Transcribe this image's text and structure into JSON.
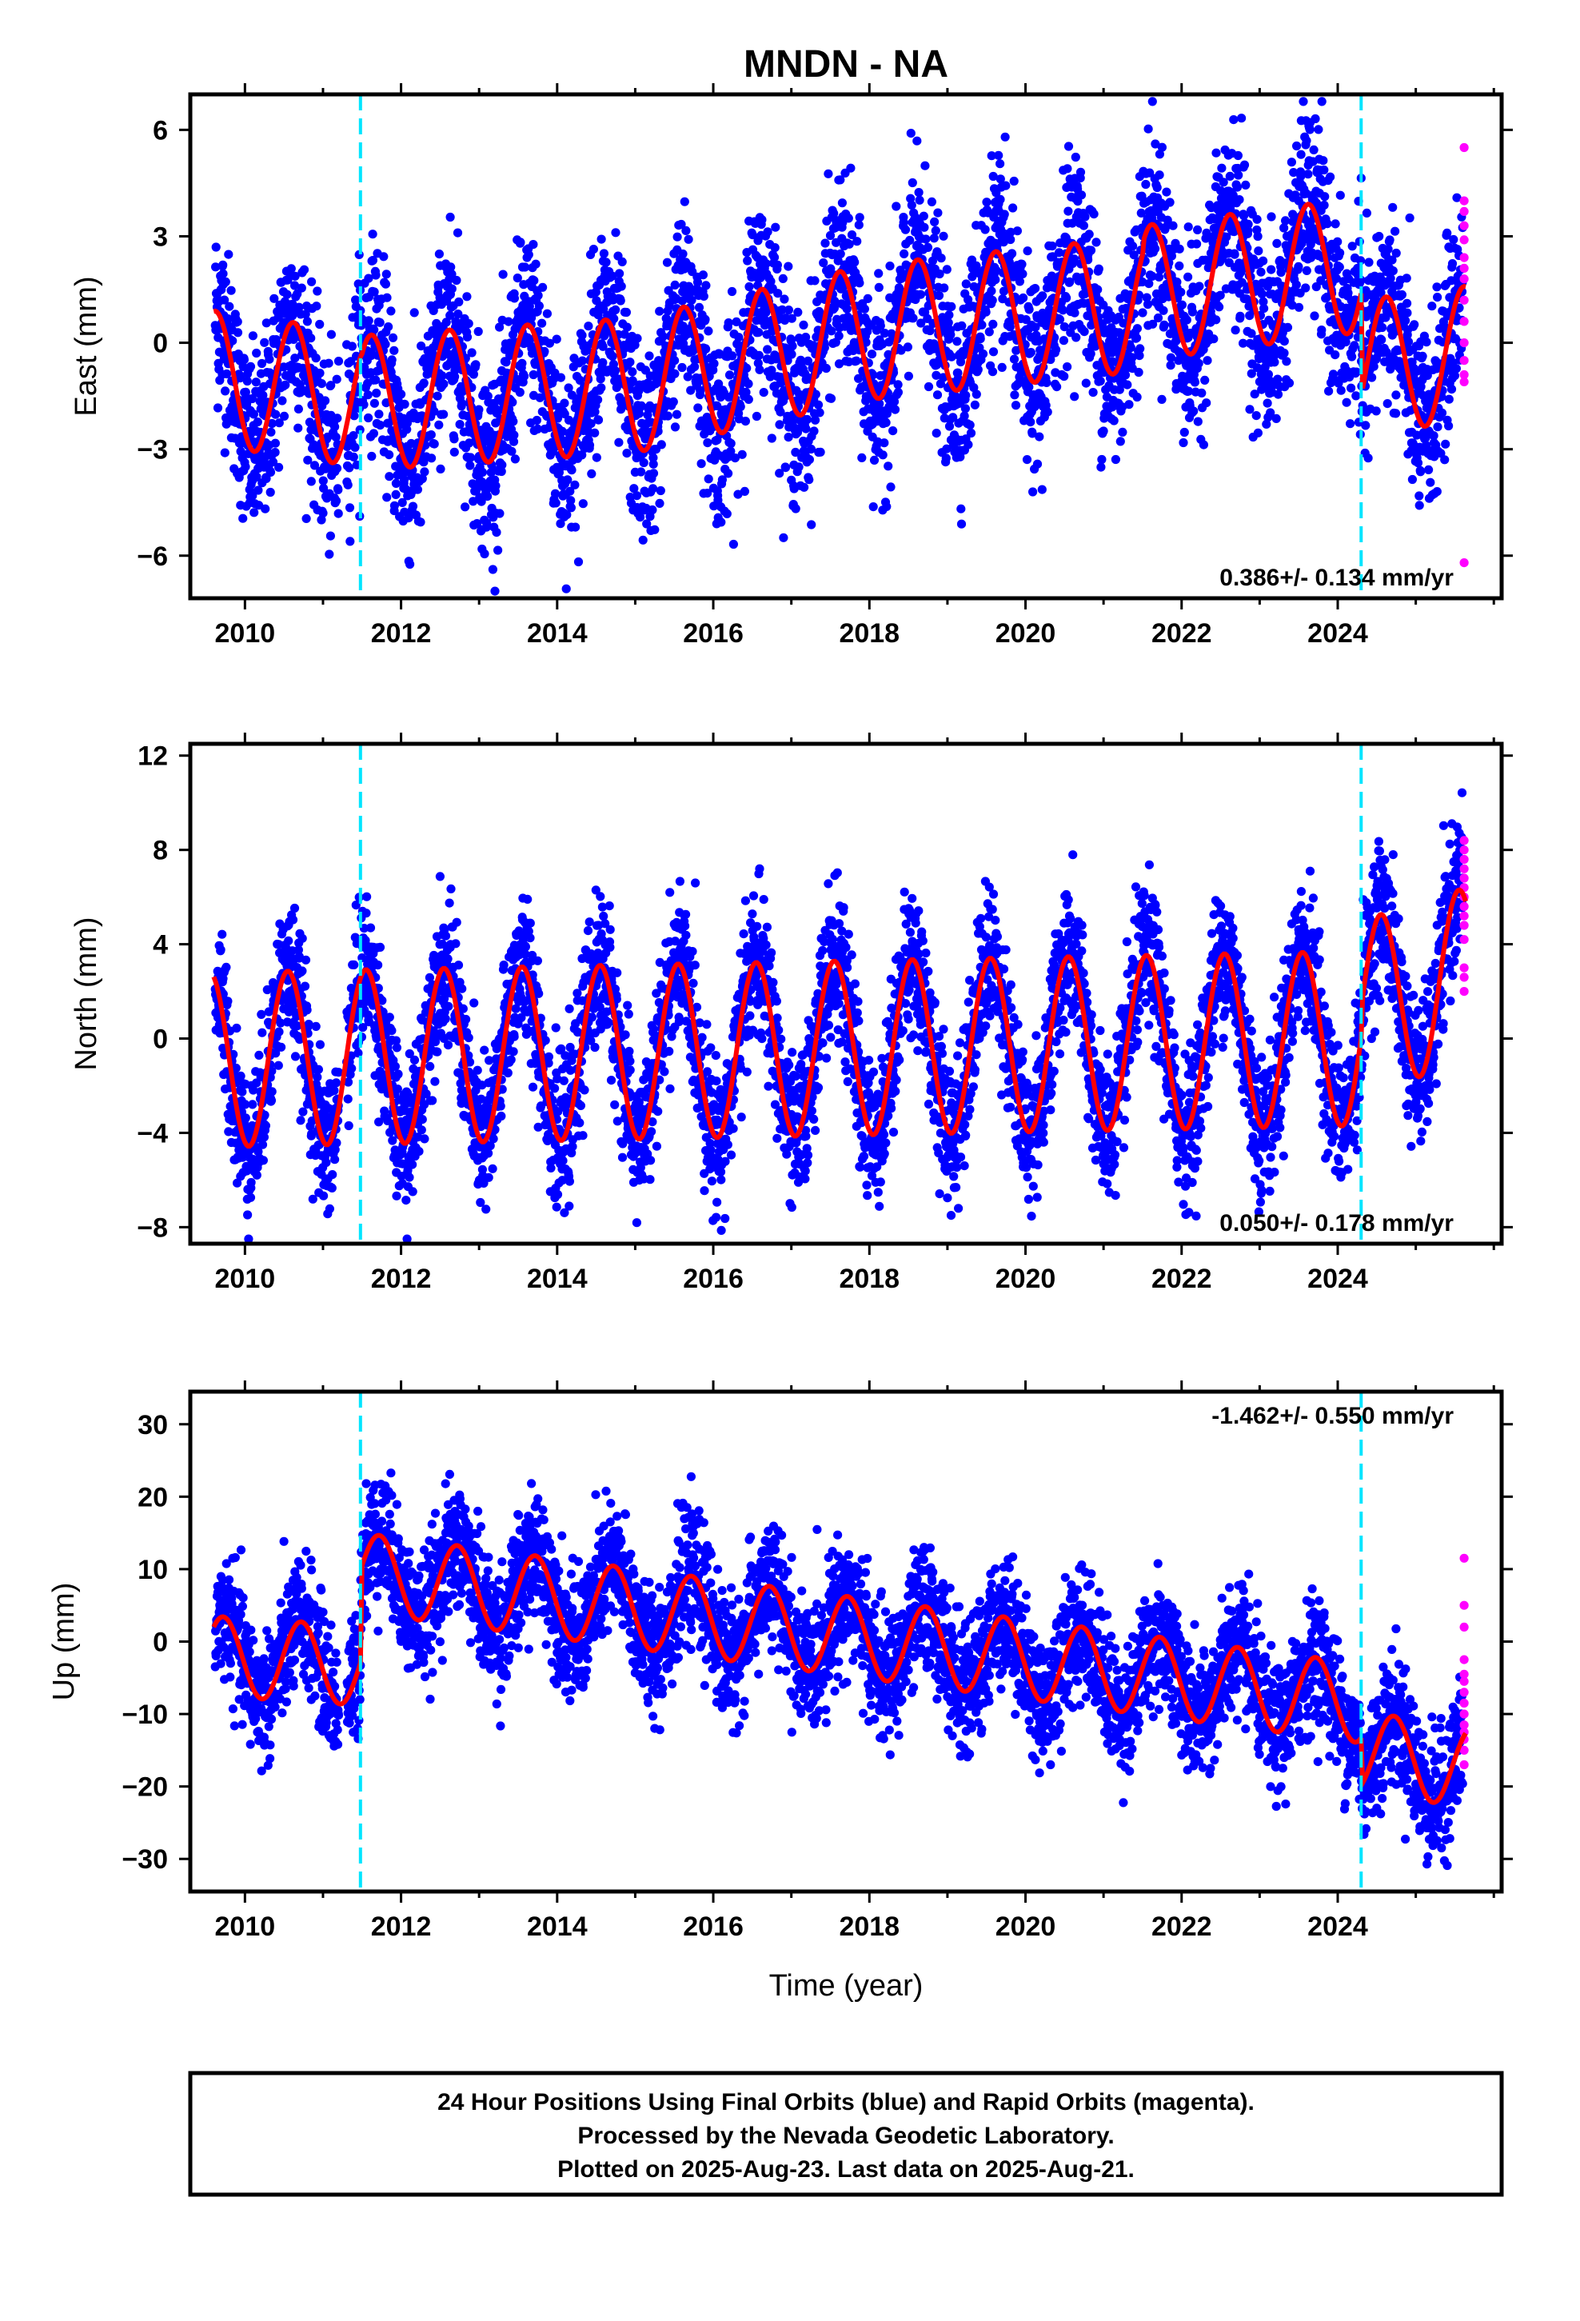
{
  "chart_title": "MNDN - NA",
  "colors": {
    "final_orbits": "#0000ff",
    "rapid_orbits": "#ff00ff",
    "model_fit": "#ff0000",
    "event_lines": "#00e5ff",
    "frame": "#000000"
  },
  "event_lines_year": [
    2011.48,
    2024.3
  ],
  "x_axis": {
    "range": [
      2009.3,
      2026.1
    ],
    "ticks": [
      2010,
      2012,
      2014,
      2016,
      2018,
      2020,
      2022,
      2024
    ],
    "xlabel": "Time (year)"
  },
  "chart_data": [
    {
      "type": "scatter",
      "component": "east",
      "ylabel": "East (mm)",
      "ylim": [
        -7.2,
        7.0
      ],
      "yticks": [
        -6,
        -3,
        0,
        3,
        6
      ],
      "ytick_labels": [
        "−6",
        "−3",
        "0",
        "3",
        "6"
      ],
      "rate_text": "0.386+/- 0.134 mm/yr",
      "rate_position": "bottom-right",
      "model": {
        "seasonal_amp": 1.9,
        "phase_peak": 0.62,
        "trend_segments": [
          {
            "from": 2009.6,
            "to": 2011.48,
            "start": -1.0,
            "end": -1.6
          },
          {
            "from": 2011.48,
            "to": 2015.0,
            "start": -1.7,
            "end": -1.2
          },
          {
            "from": 2015.0,
            "to": 2018.0,
            "start": -1.2,
            "end": 0.3
          },
          {
            "from": 2018.0,
            "to": 2021.5,
            "start": 0.3,
            "end": 1.1
          },
          {
            "from": 2021.5,
            "to": 2024.3,
            "start": 1.4,
            "end": 2.2
          },
          {
            "from": 2024.3,
            "to": 2025.65,
            "start": -0.7,
            "end": -0.3
          }
        ],
        "noise_sd": 1.3
      },
      "rapid_points": [
        5.5,
        4.0,
        3.7,
        3.3,
        2.9,
        2.4,
        2.1,
        1.8,
        1.2,
        0.6,
        0.0,
        -0.5,
        -0.9,
        -1.1,
        -6.2
      ]
    },
    {
      "type": "scatter",
      "component": "north",
      "ylabel": "North (mm)",
      "ylim": [
        -8.7,
        12.5
      ],
      "yticks": [
        -8,
        -4,
        0,
        4,
        8,
        12
      ],
      "ytick_labels": [
        "−8",
        "−4",
        "0",
        "4",
        "8",
        "12"
      ],
      "rate_text": "0.050+/- 0.178 mm/yr",
      "rate_position": "bottom-right",
      "model": {
        "seasonal_amp": 3.7,
        "phase_peak": 0.55,
        "trend_segments": [
          {
            "from": 2009.6,
            "to": 2024.3,
            "start": -0.9,
            "end": 0.0
          },
          {
            "from": 2024.3,
            "to": 2025.65,
            "start": 1.3,
            "end": 2.7
          }
        ],
        "noise_sd": 1.5
      },
      "rapid_points": [
        8.4,
        8.0,
        7.6,
        7.2,
        6.8,
        6.4,
        6.0,
        5.6,
        5.2,
        4.8,
        4.2,
        3.0,
        2.6,
        2.0
      ]
    },
    {
      "type": "scatter",
      "component": "up",
      "ylabel": "Up (mm)",
      "ylim": [
        -34.5,
        34.5
      ],
      "yticks": [
        -30,
        -20,
        -10,
        0,
        10,
        20,
        30
      ],
      "ytick_labels": [
        "−30",
        "−20",
        "−10",
        "0",
        "10",
        "20",
        "30"
      ],
      "rate_text": "-1.462+/- 0.550 mm/yr",
      "rate_position": "top-right",
      "model": {
        "seasonal_amp": 5.5,
        "phase_peak": 0.72,
        "trend_segments": [
          {
            "from": 2009.6,
            "to": 2011.48,
            "start": -2.0,
            "end": -3.3
          },
          {
            "from": 2011.48,
            "to": 2024.3,
            "start": 9.5,
            "end": -8.5
          },
          {
            "from": 2024.3,
            "to": 2025.65,
            "start": -15.0,
            "end": -17.5
          }
        ],
        "noise_sd": 4.3
      },
      "rapid_points": [
        11.5,
        5.0,
        2.0,
        -2.5,
        -4.5,
        -5.5,
        -7.0,
        -8.5,
        -10.0,
        -11.5,
        -12.5,
        -13.5,
        -15.0,
        -17.0
      ]
    }
  ],
  "footer": {
    "line1": "24 Hour Positions Using Final Orbits (blue) and Rapid Orbits (magenta).",
    "line2": "Processed by the Nevada Geodetic Laboratory.",
    "line3": "Plotted on 2025-Aug-23. Last data on 2025-Aug-21."
  }
}
